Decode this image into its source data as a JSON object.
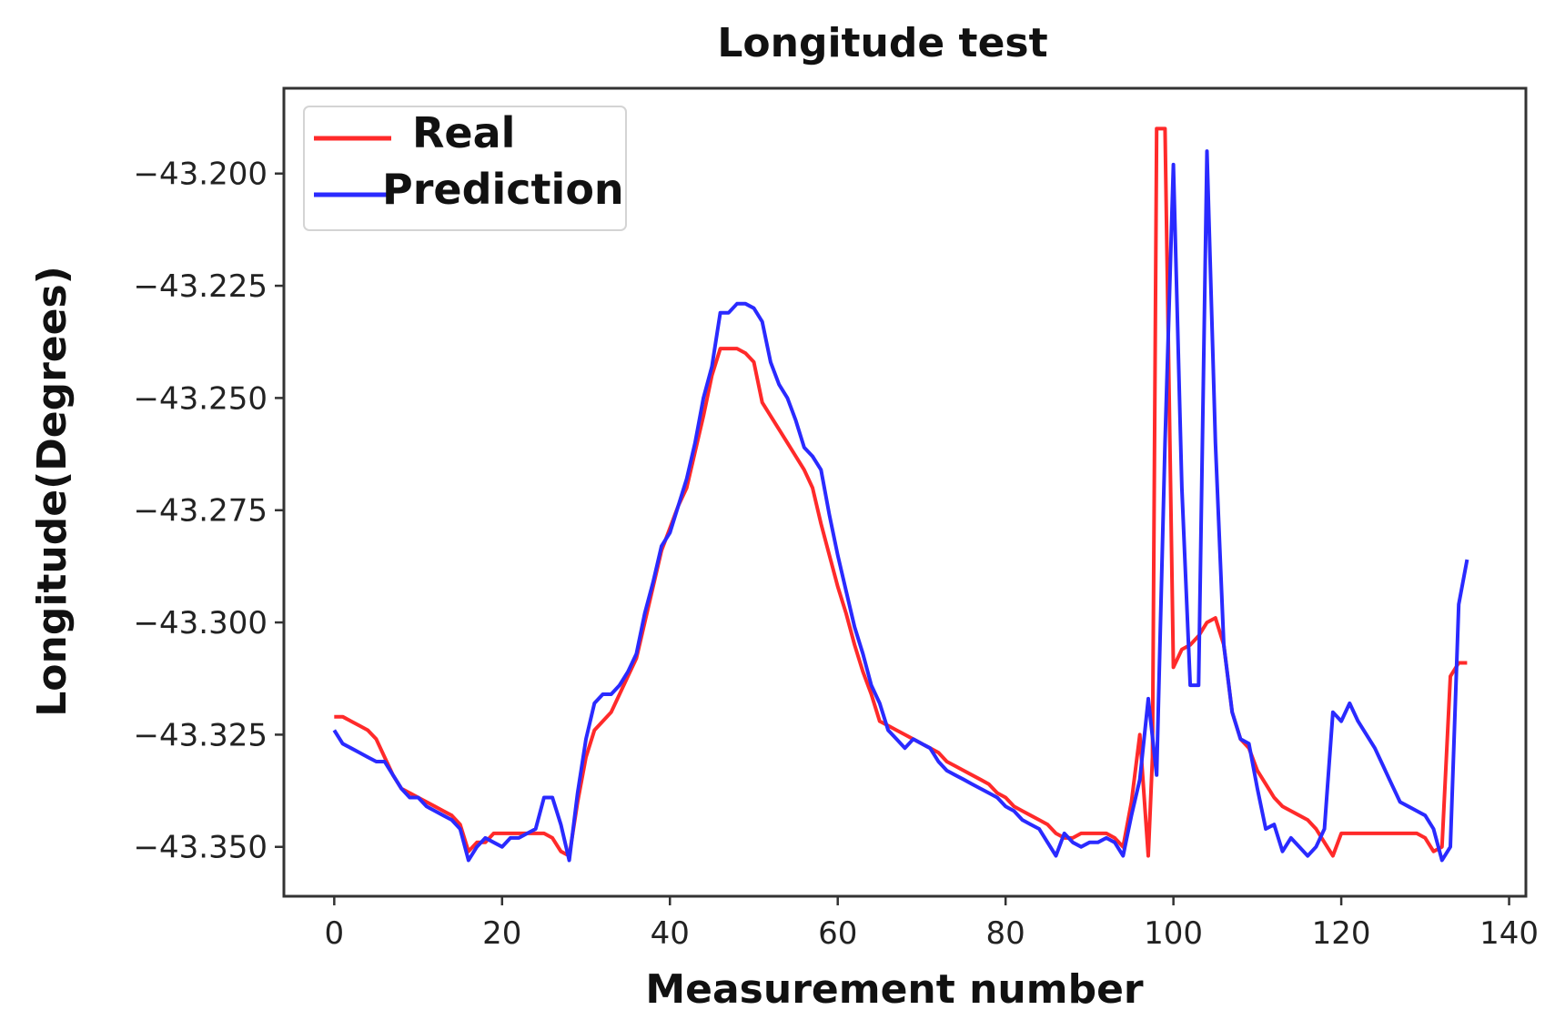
{
  "chart_data": {
    "type": "line",
    "title": "Longitude test",
    "xlabel": "Measurement number",
    "ylabel": "Longitude(Degrees)",
    "xlim": [
      -6,
      142
    ],
    "ylim": [
      -43.361,
      -43.181
    ],
    "xticks": [
      0,
      20,
      40,
      60,
      80,
      100,
      120,
      140
    ],
    "xtick_labels": [
      "0",
      "20",
      "40",
      "60",
      "80",
      "100",
      "120",
      "140"
    ],
    "yticks": [
      -43.35,
      -43.325,
      -43.3,
      -43.275,
      -43.25,
      -43.225,
      -43.2
    ],
    "ytick_labels": [
      "−43.350",
      "−43.325",
      "−43.300",
      "−43.275",
      "−43.250",
      "−43.225",
      "−43.200"
    ],
    "grid": false,
    "legend_position": "top-left",
    "series": [
      {
        "name": "Real",
        "color": "#ff2a2a",
        "points": [
          [
            0,
            -43.321
          ],
          [
            1,
            -43.321
          ],
          [
            2,
            -43.322
          ],
          [
            3,
            -43.323
          ],
          [
            4,
            -43.324
          ],
          [
            5,
            -43.326
          ],
          [
            6,
            -43.33
          ],
          [
            7,
            -43.334
          ],
          [
            8,
            -43.337
          ],
          [
            9,
            -43.338
          ],
          [
            10,
            -43.339
          ],
          [
            11,
            -43.34
          ],
          [
            12,
            -43.341
          ],
          [
            13,
            -43.342
          ],
          [
            14,
            -43.343
          ],
          [
            15,
            -43.345
          ],
          [
            16,
            -43.351
          ],
          [
            17,
            -43.349
          ],
          [
            18,
            -43.349
          ],
          [
            19,
            -43.347
          ],
          [
            20,
            -43.347
          ],
          [
            21,
            -43.347
          ],
          [
            22,
            -43.347
          ],
          [
            23,
            -43.347
          ],
          [
            24,
            -43.347
          ],
          [
            25,
            -43.347
          ],
          [
            26,
            -43.348
          ],
          [
            27,
            -43.351
          ],
          [
            28,
            -43.352
          ],
          [
            29,
            -43.34
          ],
          [
            30,
            -43.33
          ],
          [
            31,
            -43.324
          ],
          [
            32,
            -43.322
          ],
          [
            33,
            -43.32
          ],
          [
            34,
            -43.316
          ],
          [
            35,
            -43.312
          ],
          [
            36,
            -43.308
          ],
          [
            37,
            -43.3
          ],
          [
            38,
            -43.292
          ],
          [
            39,
            -43.284
          ],
          [
            40,
            -43.279
          ],
          [
            41,
            -43.274
          ],
          [
            42,
            -43.27
          ],
          [
            43,
            -43.262
          ],
          [
            44,
            -43.254
          ],
          [
            45,
            -43.245
          ],
          [
            46,
            -43.239
          ],
          [
            47,
            -43.239
          ],
          [
            48,
            -43.239
          ],
          [
            49,
            -43.24
          ],
          [
            50,
            -43.242
          ],
          [
            51,
            -43.251
          ],
          [
            52,
            -43.254
          ],
          [
            53,
            -43.257
          ],
          [
            54,
            -43.26
          ],
          [
            55,
            -43.263
          ],
          [
            56,
            -43.266
          ],
          [
            57,
            -43.27
          ],
          [
            58,
            -43.278
          ],
          [
            59,
            -43.285
          ],
          [
            60,
            -43.292
          ],
          [
            61,
            -43.298
          ],
          [
            62,
            -43.305
          ],
          [
            63,
            -43.311
          ],
          [
            64,
            -43.316
          ],
          [
            65,
            -43.322
          ],
          [
            66,
            -43.323
          ],
          [
            67,
            -43.324
          ],
          [
            68,
            -43.325
          ],
          [
            69,
            -43.326
          ],
          [
            70,
            -43.327
          ],
          [
            71,
            -43.328
          ],
          [
            72,
            -43.329
          ],
          [
            73,
            -43.331
          ],
          [
            74,
            -43.332
          ],
          [
            75,
            -43.333
          ],
          [
            76,
            -43.334
          ],
          [
            77,
            -43.335
          ],
          [
            78,
            -43.336
          ],
          [
            79,
            -43.338
          ],
          [
            80,
            -43.339
          ],
          [
            81,
            -43.341
          ],
          [
            82,
            -43.342
          ],
          [
            83,
            -43.343
          ],
          [
            84,
            -43.344
          ],
          [
            85,
            -43.345
          ],
          [
            86,
            -43.347
          ],
          [
            87,
            -43.348
          ],
          [
            88,
            -43.348
          ],
          [
            89,
            -43.347
          ],
          [
            90,
            -43.347
          ],
          [
            91,
            -43.347
          ],
          [
            92,
            -43.347
          ],
          [
            93,
            -43.348
          ],
          [
            94,
            -43.35
          ],
          [
            95,
            -43.34
          ],
          [
            96,
            -43.325
          ],
          [
            97,
            -43.352
          ],
          [
            97.5,
            -43.33
          ],
          [
            98,
            -43.19
          ],
          [
            99,
            -43.19
          ],
          [
            100,
            -43.31
          ],
          [
            101,
            -43.306
          ],
          [
            102,
            -43.305
          ],
          [
            103,
            -43.303
          ],
          [
            104,
            -43.3
          ],
          [
            105,
            -43.299
          ],
          [
            106,
            -43.305
          ],
          [
            107,
            -43.32
          ],
          [
            108,
            -43.326
          ],
          [
            109,
            -43.328
          ],
          [
            110,
            -43.333
          ],
          [
            111,
            -43.336
          ],
          [
            112,
            -43.339
          ],
          [
            113,
            -43.341
          ],
          [
            114,
            -43.342
          ],
          [
            115,
            -43.343
          ],
          [
            116,
            -43.344
          ],
          [
            117,
            -43.346
          ],
          [
            118,
            -43.349
          ],
          [
            119,
            -43.352
          ],
          [
            120,
            -43.347
          ],
          [
            121,
            -43.347
          ],
          [
            122,
            -43.347
          ],
          [
            123,
            -43.347
          ],
          [
            124,
            -43.347
          ],
          [
            125,
            -43.347
          ],
          [
            126,
            -43.347
          ],
          [
            127,
            -43.347
          ],
          [
            128,
            -43.347
          ],
          [
            129,
            -43.347
          ],
          [
            130,
            -43.348
          ],
          [
            131,
            -43.351
          ],
          [
            132,
            -43.35
          ],
          [
            133,
            -43.312
          ],
          [
            134,
            -43.309
          ],
          [
            135,
            -43.309
          ]
        ]
      },
      {
        "name": "Prediction",
        "color": "#2a2aff",
        "points": [
          [
            0,
            -43.324
          ],
          [
            1,
            -43.327
          ],
          [
            2,
            -43.328
          ],
          [
            3,
            -43.329
          ],
          [
            4,
            -43.33
          ],
          [
            5,
            -43.331
          ],
          [
            6,
            -43.331
          ],
          [
            7,
            -43.334
          ],
          [
            8,
            -43.337
          ],
          [
            9,
            -43.339
          ],
          [
            10,
            -43.339
          ],
          [
            11,
            -43.341
          ],
          [
            12,
            -43.342
          ],
          [
            13,
            -43.343
          ],
          [
            14,
            -43.344
          ],
          [
            15,
            -43.346
          ],
          [
            16,
            -43.353
          ],
          [
            17,
            -43.35
          ],
          [
            18,
            -43.348
          ],
          [
            19,
            -43.349
          ],
          [
            20,
            -43.35
          ],
          [
            21,
            -43.348
          ],
          [
            22,
            -43.348
          ],
          [
            23,
            -43.347
          ],
          [
            24,
            -43.346
          ],
          [
            25,
            -43.339
          ],
          [
            26,
            -43.339
          ],
          [
            27,
            -43.345
          ],
          [
            28,
            -43.353
          ],
          [
            29,
            -43.338
          ],
          [
            30,
            -43.326
          ],
          [
            31,
            -43.318
          ],
          [
            32,
            -43.316
          ],
          [
            33,
            -43.316
          ],
          [
            34,
            -43.314
          ],
          [
            35,
            -43.311
          ],
          [
            36,
            -43.307
          ],
          [
            37,
            -43.298
          ],
          [
            38,
            -43.291
          ],
          [
            39,
            -43.283
          ],
          [
            40,
            -43.28
          ],
          [
            41,
            -43.274
          ],
          [
            42,
            -43.268
          ],
          [
            43,
            -43.26
          ],
          [
            44,
            -43.25
          ],
          [
            45,
            -43.243
          ],
          [
            46,
            -43.231
          ],
          [
            47,
            -43.231
          ],
          [
            48,
            -43.229
          ],
          [
            49,
            -43.229
          ],
          [
            50,
            -43.23
          ],
          [
            51,
            -43.233
          ],
          [
            52,
            -43.242
          ],
          [
            53,
            -43.247
          ],
          [
            54,
            -43.25
          ],
          [
            55,
            -43.255
          ],
          [
            56,
            -43.261
          ],
          [
            57,
            -43.263
          ],
          [
            58,
            -43.266
          ],
          [
            59,
            -43.276
          ],
          [
            60,
            -43.285
          ],
          [
            61,
            -43.293
          ],
          [
            62,
            -43.301
          ],
          [
            63,
            -43.307
          ],
          [
            64,
            -43.314
          ],
          [
            65,
            -43.318
          ],
          [
            66,
            -43.324
          ],
          [
            67,
            -43.326
          ],
          [
            68,
            -43.328
          ],
          [
            69,
            -43.326
          ],
          [
            70,
            -43.327
          ],
          [
            71,
            -43.328
          ],
          [
            72,
            -43.331
          ],
          [
            73,
            -43.333
          ],
          [
            74,
            -43.334
          ],
          [
            75,
            -43.335
          ],
          [
            76,
            -43.336
          ],
          [
            77,
            -43.337
          ],
          [
            78,
            -43.338
          ],
          [
            79,
            -43.339
          ],
          [
            80,
            -43.341
          ],
          [
            81,
            -43.342
          ],
          [
            82,
            -43.344
          ],
          [
            83,
            -43.345
          ],
          [
            84,
            -43.346
          ],
          [
            85,
            -43.349
          ],
          [
            86,
            -43.352
          ],
          [
            87,
            -43.347
          ],
          [
            88,
            -43.349
          ],
          [
            89,
            -43.35
          ],
          [
            90,
            -43.349
          ],
          [
            91,
            -43.349
          ],
          [
            92,
            -43.348
          ],
          [
            93,
            -43.349
          ],
          [
            94,
            -43.352
          ],
          [
            95,
            -43.343
          ],
          [
            96,
            -43.335
          ],
          [
            97,
            -43.317
          ],
          [
            98,
            -43.334
          ],
          [
            99,
            -43.26
          ],
          [
            100,
            -43.198
          ],
          [
            101,
            -43.27
          ],
          [
            102,
            -43.314
          ],
          [
            103,
            -43.314
          ],
          [
            104,
            -43.195
          ],
          [
            105,
            -43.26
          ],
          [
            106,
            -43.305
          ],
          [
            107,
            -43.32
          ],
          [
            108,
            -43.326
          ],
          [
            109,
            -43.327
          ],
          [
            110,
            -43.337
          ],
          [
            111,
            -43.346
          ],
          [
            112,
            -43.345
          ],
          [
            113,
            -43.351
          ],
          [
            114,
            -43.348
          ],
          [
            115,
            -43.35
          ],
          [
            116,
            -43.352
          ],
          [
            117,
            -43.35
          ],
          [
            118,
            -43.346
          ],
          [
            119,
            -43.32
          ],
          [
            120,
            -43.322
          ],
          [
            121,
            -43.318
          ],
          [
            122,
            -43.322
          ],
          [
            123,
            -43.325
          ],
          [
            124,
            -43.328
          ],
          [
            125,
            -43.332
          ],
          [
            126,
            -43.336
          ],
          [
            127,
            -43.34
          ],
          [
            128,
            -43.341
          ],
          [
            129,
            -43.342
          ],
          [
            130,
            -43.343
          ],
          [
            131,
            -43.346
          ],
          [
            132,
            -43.353
          ],
          [
            133,
            -43.35
          ],
          [
            134,
            -43.296
          ],
          [
            135,
            -43.286
          ]
        ]
      }
    ]
  }
}
